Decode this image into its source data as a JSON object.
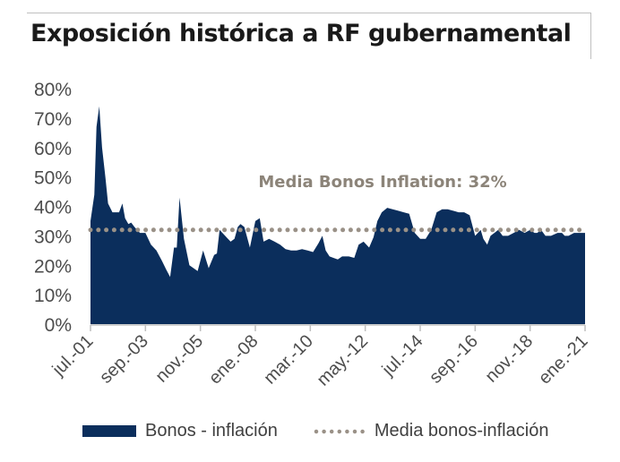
{
  "chart_data": {
    "type": "area",
    "title": "Exposición histórica a RF gubernamental",
    "xlabel": "",
    "ylabel": "",
    "ylim": [
      0,
      0.8
    ],
    "yticks": [
      "0%",
      "10%",
      "20%",
      "30%",
      "40%",
      "50%",
      "60%",
      "70%",
      "80%"
    ],
    "xtick_labels": [
      "jul.-01",
      "sep.-03",
      "nov.-05",
      "ene.-08",
      "mar.-10",
      "may.-12",
      "jul.-14",
      "sep.-16",
      "nov.-18",
      "ene.-21"
    ],
    "annotation": "Media Bonos Inflation: 32%",
    "grid": false,
    "legend_position": "bottom",
    "colors": {
      "area": "#0b2e5c",
      "mean": "#9a9187",
      "axis": "#bfbfbf",
      "annotation": "#8c8479"
    },
    "series": [
      {
        "name": "Bonos - inflación",
        "type": "area",
        "x": [
          0,
          0.07,
          0.11,
          0.13,
          0.16,
          0.21,
          0.27,
          0.32,
          0.4,
          0.48,
          0.52,
          0.58,
          0.63,
          0.69,
          0.74,
          0.8,
          0.9,
          1.0,
          1.1,
          1.2,
          1.3,
          1.38,
          1.45,
          1.52,
          1.57,
          1.62,
          1.7,
          1.8,
          1.95,
          2.05,
          2.15,
          2.25,
          2.3,
          2.35,
          2.45,
          2.55,
          2.62,
          2.68,
          2.73,
          2.8,
          2.9,
          3.0,
          3.08,
          3.15,
          3.25,
          3.35,
          3.45,
          3.55,
          3.65,
          3.75,
          3.85,
          3.95,
          4.05,
          4.15,
          4.22,
          4.28,
          4.35,
          4.42,
          4.5,
          4.58,
          4.7,
          4.8,
          4.88,
          4.97,
          5.07,
          5.15,
          5.22,
          5.3,
          5.4,
          5.5,
          5.6,
          5.7,
          5.8,
          5.9,
          6.0,
          6.1,
          6.2,
          6.3,
          6.4,
          6.5,
          6.6,
          6.7,
          6.8,
          6.9,
          7.0,
          7.1,
          7.15,
          7.22,
          7.28,
          7.35,
          7.42,
          7.5,
          7.6,
          7.7,
          7.8,
          7.9,
          8.0,
          8.08,
          8.13,
          8.2,
          8.28,
          8.38,
          8.5,
          8.58,
          8.63,
          8.7,
          8.8,
          8.9,
          9.0
        ],
        "values": [
          0.35,
          0.44,
          0.67,
          0.7,
          0.74,
          0.6,
          0.5,
          0.41,
          0.38,
          0.38,
          0.38,
          0.41,
          0.36,
          0.34,
          0.345,
          0.33,
          0.31,
          0.31,
          0.27,
          0.25,
          0.215,
          0.185,
          0.16,
          0.26,
          0.26,
          0.43,
          0.29,
          0.2,
          0.18,
          0.25,
          0.19,
          0.235,
          0.24,
          0.32,
          0.3,
          0.28,
          0.29,
          0.33,
          0.34,
          0.33,
          0.26,
          0.35,
          0.36,
          0.28,
          0.29,
          0.28,
          0.27,
          0.255,
          0.25,
          0.25,
          0.255,
          0.25,
          0.245,
          0.275,
          0.3,
          0.25,
          0.23,
          0.225,
          0.22,
          0.23,
          0.23,
          0.225,
          0.27,
          0.28,
          0.26,
          0.295,
          0.35,
          0.38,
          0.395,
          0.39,
          0.385,
          0.38,
          0.375,
          0.31,
          0.29,
          0.29,
          0.32,
          0.38,
          0.39,
          0.39,
          0.385,
          0.38,
          0.38,
          0.37,
          0.3,
          0.32,
          0.29,
          0.27,
          0.3,
          0.31,
          0.32,
          0.3,
          0.3,
          0.31,
          0.32,
          0.31,
          0.32,
          0.31,
          0.31,
          0.32,
          0.3,
          0.3,
          0.31,
          0.31,
          0.3,
          0.3,
          0.31,
          0.31,
          0.31
        ]
      },
      {
        "name": "Media bonos-inflación",
        "type": "line",
        "value": 0.32
      }
    ]
  }
}
